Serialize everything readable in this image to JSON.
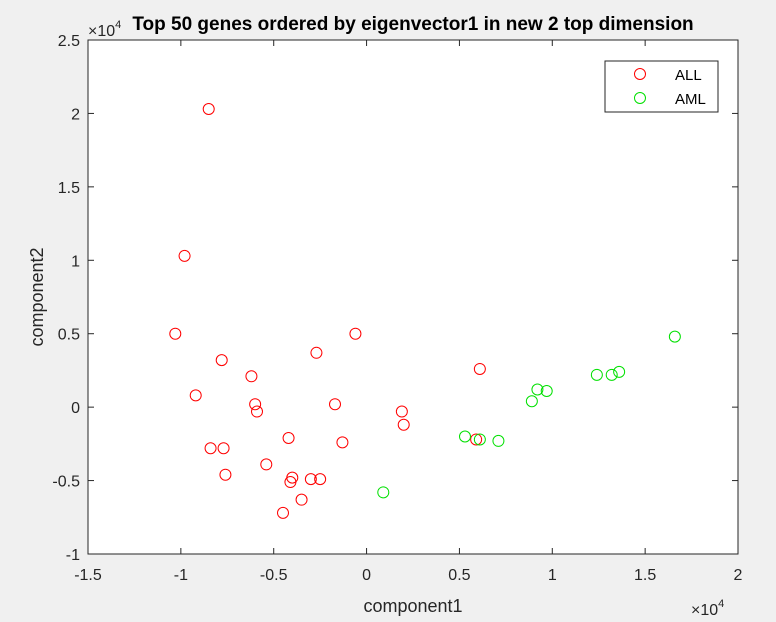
{
  "chart_data": {
    "type": "scatter",
    "title": "Top 50 genes ordered by eigenvector1 in new 2 top dimension",
    "xlabel": "component1",
    "ylabel": "component2",
    "x_exponent": "×10",
    "x_exponent_power": "4",
    "y_exponent": "×10",
    "y_exponent_power": "4",
    "xlim": [
      -1.5,
      2
    ],
    "ylim": [
      -1,
      2.5
    ],
    "xticks": [
      -1.5,
      -1,
      -0.5,
      0,
      0.5,
      1,
      1.5,
      2
    ],
    "yticks": [
      -1,
      -0.5,
      0,
      0.5,
      1,
      1.5,
      2,
      2.5
    ],
    "xtick_labels": [
      "-1.5",
      "-1",
      "-0.5",
      "0",
      "0.5",
      "1",
      "1.5",
      "2"
    ],
    "ytick_labels": [
      "-1",
      "-0.5",
      "0",
      "0.5",
      "1",
      "1.5",
      "2",
      "2.5"
    ],
    "grid": false,
    "legend_position": "top-right",
    "series": [
      {
        "name": "ALL",
        "color": "#ff0000",
        "marker": "circle-open",
        "points": [
          [
            -0.85,
            2.03
          ],
          [
            -0.98,
            1.03
          ],
          [
            -1.03,
            0.5
          ],
          [
            -0.78,
            0.32
          ],
          [
            -0.92,
            0.08
          ],
          [
            -0.62,
            0.21
          ],
          [
            -0.6,
            0.02
          ],
          [
            -0.59,
            -0.03
          ],
          [
            -0.84,
            -0.28
          ],
          [
            -0.77,
            -0.28
          ],
          [
            -0.76,
            -0.46
          ],
          [
            -0.54,
            -0.39
          ],
          [
            -0.42,
            -0.21
          ],
          [
            -0.4,
            -0.48
          ],
          [
            -0.41,
            -0.51
          ],
          [
            -0.35,
            -0.63
          ],
          [
            -0.45,
            -0.72
          ],
          [
            -0.3,
            -0.49
          ],
          [
            -0.25,
            -0.49
          ],
          [
            -0.27,
            0.37
          ],
          [
            -0.06,
            0.5
          ],
          [
            -0.17,
            0.02
          ],
          [
            -0.13,
            -0.24
          ],
          [
            0.19,
            -0.03
          ],
          [
            0.2,
            -0.12
          ],
          [
            0.61,
            0.26
          ],
          [
            0.59,
            -0.22
          ]
        ]
      },
      {
        "name": "AML",
        "color": "#00e000",
        "marker": "circle-open",
        "points": [
          [
            0.09,
            -0.58
          ],
          [
            0.53,
            -0.2
          ],
          [
            0.61,
            -0.22
          ],
          [
            0.71,
            -0.23
          ],
          [
            0.89,
            0.04
          ],
          [
            0.92,
            0.12
          ],
          [
            0.97,
            0.11
          ],
          [
            1.24,
            0.22
          ],
          [
            1.32,
            0.22
          ],
          [
            1.36,
            0.24
          ],
          [
            1.66,
            0.48
          ]
        ]
      }
    ]
  }
}
